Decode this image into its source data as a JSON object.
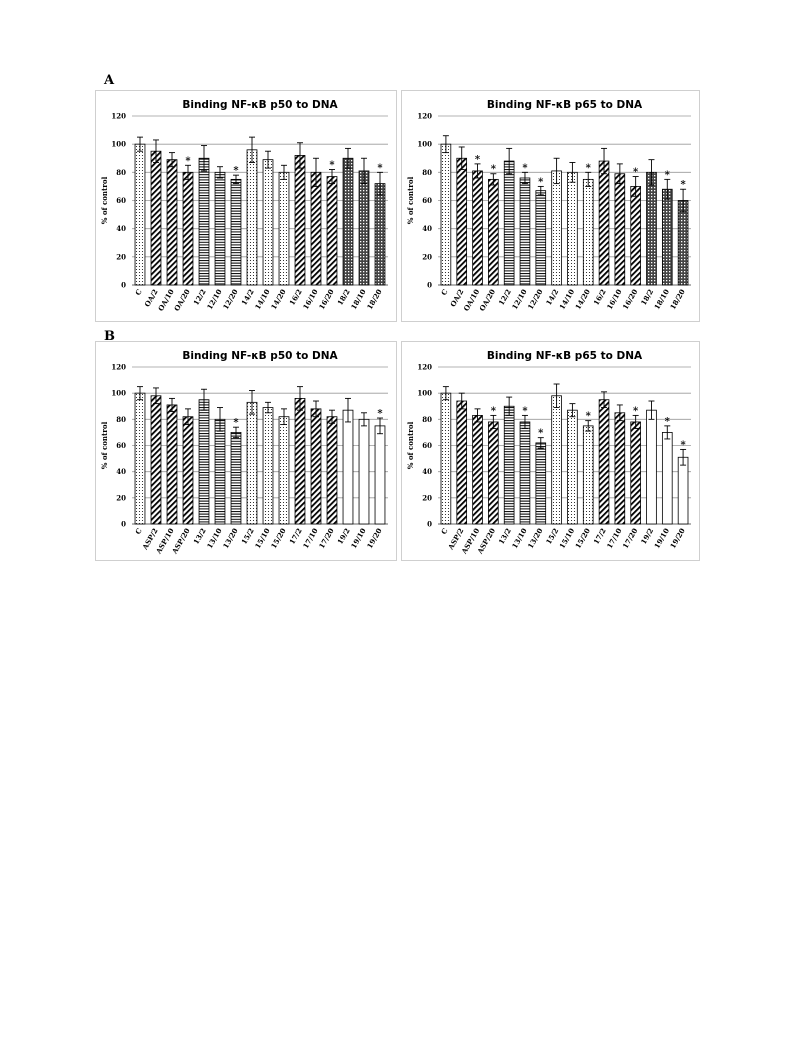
{
  "panel_labels": {
    "a": "A",
    "b": "B"
  },
  "chart_data": [
    {
      "type": "bar",
      "title": "Binding  NF-κB p50 to DNA",
      "ylabel": "% of control",
      "ylim": [
        0,
        120
      ],
      "yticks": [
        0,
        20,
        40,
        60,
        80,
        100,
        120
      ],
      "grid": true,
      "categories": [
        "C",
        "OA/2",
        "OA/10",
        "OA/20",
        "12/2",
        "12/10",
        "12/20",
        "14/2",
        "14/10",
        "14/20",
        "16/2",
        "16/10",
        "16/20",
        "18/2",
        "18/10",
        "18/20"
      ],
      "values": [
        100,
        95,
        89,
        80,
        90,
        80,
        75,
        96,
        89,
        80,
        92,
        80,
        77,
        90,
        81,
        72
      ],
      "errors": [
        5,
        8,
        5,
        5,
        9,
        4,
        3,
        9,
        6,
        5,
        9,
        10,
        5,
        7,
        9,
        8
      ],
      "significant": [
        false,
        false,
        false,
        true,
        false,
        false,
        true,
        false,
        false,
        false,
        false,
        false,
        true,
        false,
        false,
        true
      ],
      "patterns": [
        "dots",
        "diag",
        "diag",
        "diag",
        "hlines",
        "hlines",
        "hlines",
        "dots",
        "dots",
        "dots",
        "diag",
        "diag",
        "diag",
        "cross",
        "cross",
        "cross"
      ],
      "significance_marker": "*"
    },
    {
      "type": "bar",
      "title": "Binding NF-κB p65 to DNA",
      "ylabel": "% of control",
      "ylim": [
        0,
        120
      ],
      "yticks": [
        0,
        20,
        40,
        60,
        80,
        100,
        120
      ],
      "grid": true,
      "categories": [
        "C",
        "OA/2",
        "OA/10",
        "OA/20",
        "12/2",
        "12/10",
        "12/20",
        "14/2",
        "14/10",
        "14/20",
        "16/2",
        "16/10",
        "16/20",
        "18/2",
        "18/10",
        "18/20"
      ],
      "values": [
        100,
        90,
        81,
        75,
        88,
        76,
        67,
        81,
        80,
        75,
        88,
        79,
        70,
        80,
        68,
        60
      ],
      "errors": [
        6,
        8,
        5,
        4,
        9,
        4,
        3,
        9,
        7,
        5,
        9,
        7,
        7,
        9,
        7,
        8
      ],
      "significant": [
        false,
        false,
        true,
        true,
        false,
        true,
        true,
        false,
        false,
        true,
        false,
        false,
        true,
        false,
        true,
        true
      ],
      "patterns": [
        "dots",
        "diag",
        "diag",
        "diag",
        "hlines",
        "hlines",
        "hlines",
        "dots",
        "dots",
        "dots",
        "diag",
        "diag",
        "diag",
        "cross",
        "cross",
        "cross"
      ],
      "significance_marker": "*"
    },
    {
      "type": "bar",
      "title": "Binding  NF-κB p50 to DNA",
      "ylabel": "% of control",
      "ylim": [
        0,
        120
      ],
      "yticks": [
        0,
        20,
        40,
        60,
        80,
        100,
        120
      ],
      "grid": true,
      "categories": [
        "C",
        "ASP/2",
        "ASP/10",
        "ASP/20",
        "13/2",
        "13/10",
        "13/20",
        "15/2",
        "15/10",
        "15/20",
        "17/2",
        "17/10",
        "17/20",
        "19/2",
        "19/10",
        "19/20"
      ],
      "values": [
        100,
        98,
        91,
        82,
        95,
        80,
        70,
        93,
        89,
        82,
        96,
        88,
        82,
        87,
        80,
        75
      ],
      "errors": [
        5,
        6,
        5,
        6,
        8,
        9,
        4,
        9,
        4,
        6,
        9,
        6,
        5,
        9,
        5,
        6
      ],
      "significant": [
        false,
        false,
        false,
        false,
        false,
        false,
        true,
        false,
        false,
        false,
        false,
        false,
        false,
        false,
        false,
        true
      ],
      "patterns": [
        "dots",
        "diag",
        "diag",
        "diag",
        "hlines",
        "hlines",
        "hlines",
        "dots",
        "dots",
        "dots",
        "diag",
        "diag",
        "diag",
        "plain",
        "plain",
        "plain"
      ],
      "significance_marker": "*"
    },
    {
      "type": "bar",
      "title": "Binding NF-κB p65 to DNA",
      "ylabel": "% of control",
      "ylim": [
        0,
        120
      ],
      "yticks": [
        0,
        20,
        40,
        60,
        80,
        100,
        120
      ],
      "grid": true,
      "categories": [
        "C",
        "ASP/2",
        "ASP/10",
        "ASP/20",
        "13/2",
        "13/10",
        "13/20",
        "15/2",
        "15/10",
        "15/20",
        "17/2",
        "17/10",
        "17/20",
        "19/2",
        "19/10",
        "19/20"
      ],
      "values": [
        100,
        94,
        83,
        78,
        90,
        78,
        62,
        98,
        87,
        75,
        95,
        85,
        78,
        87,
        70,
        51
      ],
      "errors": [
        5,
        6,
        5,
        5,
        7,
        5,
        4,
        9,
        5,
        4,
        6,
        6,
        5,
        7,
        5,
        6
      ],
      "significant": [
        false,
        false,
        false,
        true,
        false,
        true,
        true,
        false,
        false,
        true,
        false,
        false,
        true,
        false,
        true,
        true
      ],
      "patterns": [
        "dots",
        "diag",
        "diag",
        "diag",
        "hlines",
        "hlines",
        "hlines",
        "dots",
        "dots",
        "dots",
        "diag",
        "diag",
        "diag",
        "plain",
        "plain",
        "plain"
      ],
      "significance_marker": "*"
    }
  ]
}
